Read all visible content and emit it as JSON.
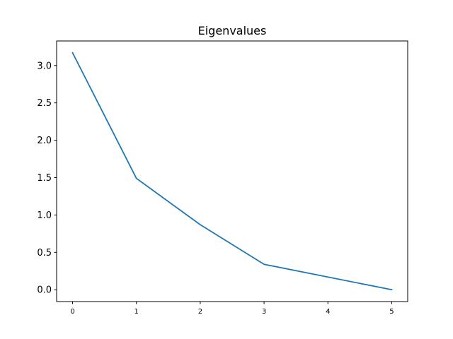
{
  "chart_data": {
    "type": "line",
    "title": "Eigenvalues",
    "xlabel": "",
    "ylabel": "",
    "x": [
      0,
      1,
      2,
      3,
      4,
      5
    ],
    "series": [
      {
        "values": [
          3.17,
          1.49,
          0.87,
          0.34,
          0.17,
          0.0
        ],
        "color": "#1f77b4"
      }
    ],
    "xticks": [
      0,
      1,
      2,
      3,
      4,
      5
    ],
    "xtick_labels": [
      "0",
      "1",
      "2",
      "3",
      "4",
      "5"
    ],
    "yticks": [
      0.0,
      0.5,
      1.0,
      1.5,
      2.0,
      2.5,
      3.0
    ],
    "ytick_labels": [
      "0.0",
      "0.5",
      "1.0",
      "1.5",
      "2.0",
      "2.5",
      "3.0"
    ],
    "xlim": [
      -0.25,
      5.25
    ],
    "ylim": [
      -0.1585,
      3.3285
    ],
    "grid": false,
    "legend": false
  }
}
